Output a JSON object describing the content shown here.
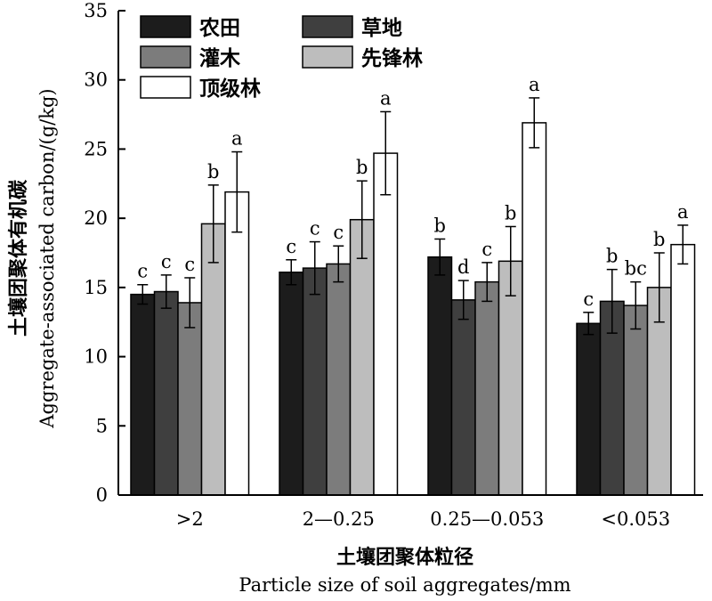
{
  "chart_data": {
    "type": "bar",
    "xlabel_cn": "土壤团聚体粒径",
    "xlabel_en": "Particle size of soil aggregates/mm",
    "ylabel_cn": "土壤团聚体有机碳",
    "ylabel_en": "Aggregate-associated carbon/(g/kg)",
    "ylim": [
      0,
      35
    ],
    "yticks": [
      0,
      5,
      10,
      15,
      20,
      25,
      30,
      35
    ],
    "categories": [
      ">2",
      "2—0.25",
      "0.25—0.053",
      "<0.053"
    ],
    "legend_position": "top-left",
    "series": [
      {
        "name": "农田",
        "color": "#1c1c1c",
        "values": [
          14.5,
          16.1,
          17.2,
          12.4
        ],
        "errors": [
          0.7,
          0.9,
          1.3,
          0.8
        ],
        "labels": [
          "c",
          "c",
          "b",
          "c"
        ]
      },
      {
        "name": "草地",
        "color": "#3f3f3f",
        "values": [
          14.7,
          16.4,
          14.1,
          14.0
        ],
        "errors": [
          1.2,
          1.9,
          1.4,
          2.3
        ],
        "labels": [
          "c",
          "c",
          "d",
          "b"
        ]
      },
      {
        "name": "灌木",
        "color": "#7c7c7c",
        "values": [
          13.9,
          16.7,
          15.4,
          13.7
        ],
        "errors": [
          1.8,
          1.3,
          1.4,
          1.7
        ],
        "labels": [
          "c",
          "c",
          "c",
          "bc"
        ]
      },
      {
        "name": "先锋林",
        "color": "#bdbdbd",
        "values": [
          19.6,
          19.9,
          16.9,
          15.0
        ],
        "errors": [
          2.8,
          2.8,
          2.5,
          2.5
        ],
        "labels": [
          "b",
          "b",
          "b",
          "b"
        ]
      },
      {
        "name": "顶级林",
        "color": "#ffffff",
        "values": [
          21.9,
          24.7,
          26.9,
          18.1
        ],
        "errors": [
          2.9,
          3.0,
          1.8,
          1.4
        ],
        "labels": [
          "a",
          "a",
          "a",
          "a"
        ]
      }
    ]
  }
}
